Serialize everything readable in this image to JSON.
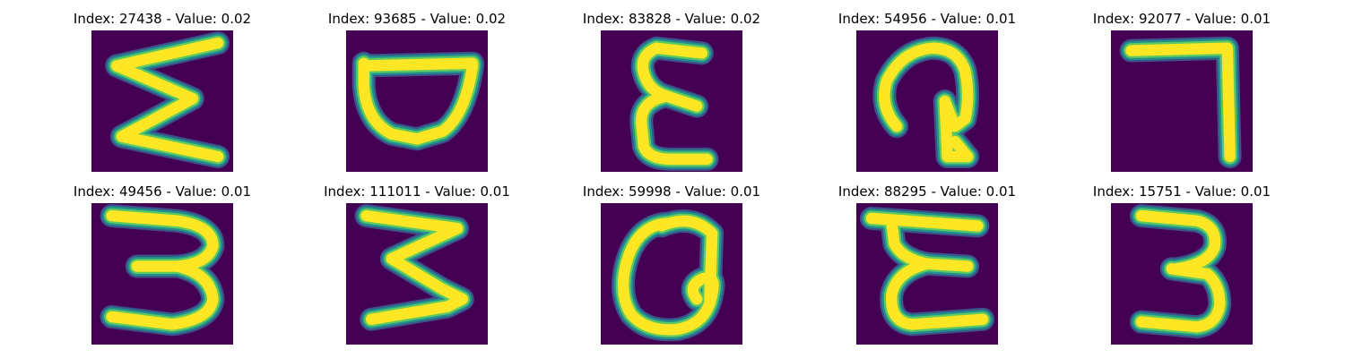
{
  "colors": {
    "background": "#440154",
    "stroke_core": "#fde725",
    "stroke_mid": "#5ec962",
    "stroke_edge": "#21918c",
    "stroke_faint": "#3b528b"
  },
  "panels": [
    {
      "title": "Index: 27438 - Value: 0.02",
      "glyph": "sigma"
    },
    {
      "title": "Index: 93685 - Value: 0.02",
      "glyph": "bowl"
    },
    {
      "title": "Index: 83828 - Value: 0.02",
      "glyph": "epsilon"
    },
    {
      "title": "Index: 54956 - Value: 0.01",
      "glyph": "curl"
    },
    {
      "title": "Index: 92077 - Value: 0.01",
      "glyph": "seven"
    },
    {
      "title": "Index: 49456 - Value: 0.01",
      "glyph": "three-a"
    },
    {
      "title": "Index: 111011 - Value: 0.01",
      "glyph": "three-b"
    },
    {
      "title": "Index: 59998 - Value: 0.01",
      "glyph": "loop"
    },
    {
      "title": "Index: 88295 - Value: 0.01",
      "glyph": "e-tall"
    },
    {
      "title": "Index: 15751 - Value: 0.01",
      "glyph": "three-c"
    }
  ]
}
